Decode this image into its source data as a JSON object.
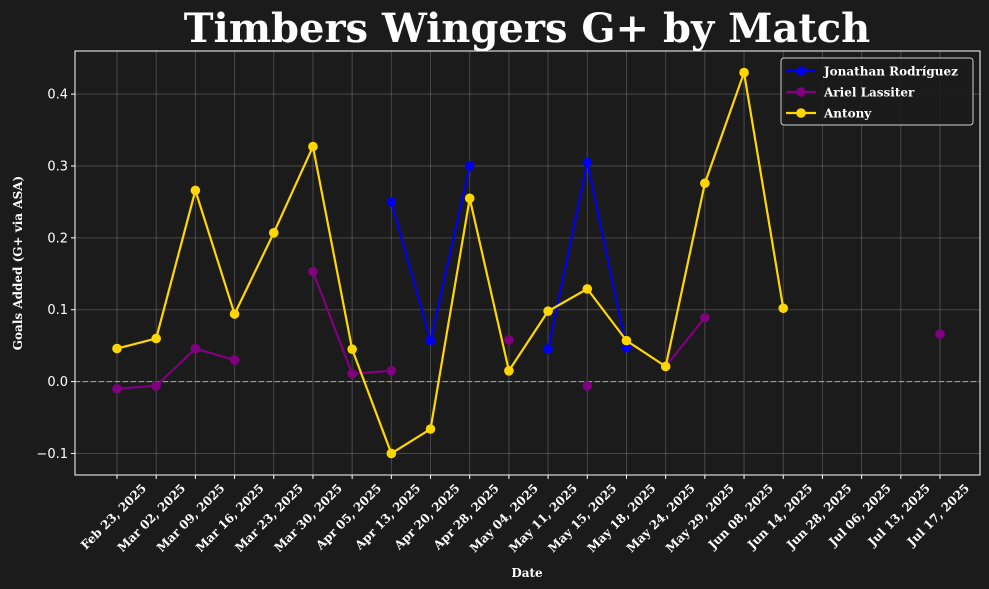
{
  "chart_data": {
    "type": "line",
    "title": "Timbers Wingers G+ by Match",
    "xlabel": "Date",
    "ylabel": "Goals Added (G+ via ASA)",
    "ylim": [
      -0.13,
      0.46
    ],
    "yticks": [
      -0.1,
      0.0,
      0.1,
      0.2,
      0.3,
      0.4
    ],
    "ytick_labels": [
      "−0.1",
      "0.0",
      "0.1",
      "0.2",
      "0.3",
      "0.4"
    ],
    "categories": [
      "Feb 23, 2025",
      "Mar 02, 2025",
      "Mar 09, 2025",
      "Mar 16, 2025",
      "Mar 23, 2025",
      "Mar 30, 2025",
      "Apr 05, 2025",
      "Apr 13, 2025",
      "Apr 20, 2025",
      "Apr 28, 2025",
      "May 04, 2025",
      "May 11, 2025",
      "May 15, 2025",
      "May 18, 2025",
      "May 24, 2025",
      "May 29, 2025",
      "Jun 08, 2025",
      "Jun 14, 2025",
      "Jun 28, 2025",
      "Jul 06, 2025",
      "Jul 13, 2025",
      "Jul 17, 2025"
    ],
    "grid": true,
    "zero_line": true,
    "legend_position": "top-right",
    "series": [
      {
        "name": "Jonathan Rodríguez",
        "color": "#0000ee",
        "values": [
          null,
          null,
          null,
          null,
          null,
          null,
          null,
          0.25,
          0.057,
          0.3,
          null,
          0.045,
          0.305,
          0.047,
          null,
          null,
          null,
          null,
          null,
          null,
          null,
          null
        ]
      },
      {
        "name": "Ariel Lassiter",
        "color": "#800080",
        "values": [
          -0.01,
          -0.006,
          0.046,
          0.03,
          null,
          0.153,
          0.011,
          0.015,
          null,
          null,
          0.058,
          null,
          -0.006,
          null,
          0.021,
          0.089,
          null,
          null,
          null,
          null,
          null,
          0.066
        ]
      },
      {
        "name": "Antony",
        "color": "#ffd700",
        "values": [
          0.046,
          0.06,
          0.266,
          0.094,
          0.207,
          0.327,
          0.045,
          -0.1,
          -0.066,
          0.255,
          0.015,
          0.098,
          0.129,
          0.057,
          0.021,
          0.276,
          0.43,
          0.102,
          null,
          null,
          null,
          null
        ]
      }
    ]
  }
}
